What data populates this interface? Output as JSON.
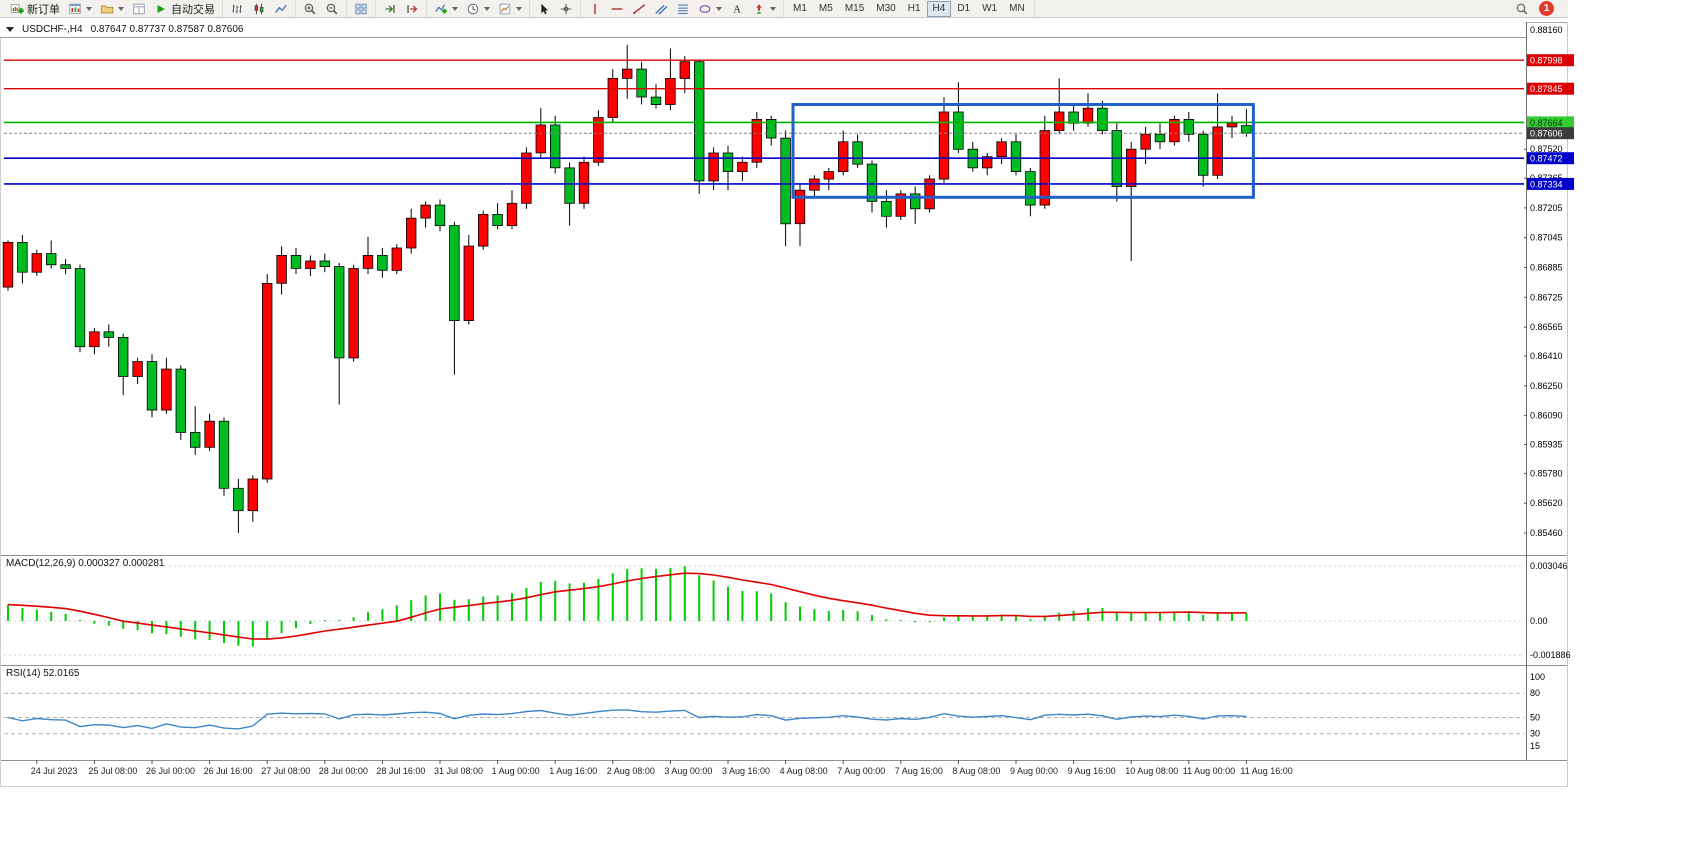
{
  "toolbar": {
    "new_order_label": "新订单",
    "auto_trading_label": "自动交易",
    "timeframes": [
      "M1",
      "M5",
      "M15",
      "M30",
      "H1",
      "H4",
      "D1",
      "W1",
      "MN"
    ],
    "active_timeframe": "H4",
    "notification_count": "1",
    "groups": [
      [
        {
          "name": "new-order",
          "icon": "new-order-icon",
          "label": "新订单"
        },
        {
          "name": "new-chart",
          "icon": "chart-window-icon",
          "dropdown": true
        },
        {
          "name": "profiles",
          "icon": "profiles-icon",
          "dropdown": true
        },
        {
          "name": "data-window",
          "icon": "data-window-icon"
        },
        {
          "name": "auto-trading",
          "icon": "autotrade-icon",
          "label": "自动交易"
        }
      ],
      [
        {
          "name": "bar-chart",
          "icon": "bars-icon"
        },
        {
          "name": "candlestick-chart",
          "icon": "candles-icon"
        },
        {
          "name": "line-chart",
          "icon": "linechart-icon"
        }
      ],
      [
        {
          "name": "zoom-in",
          "icon": "zoom-in-icon"
        },
        {
          "name": "zoom-out",
          "icon": "zoom-out-icon"
        }
      ],
      [
        {
          "name": "tile-windows",
          "icon": "tile-windows-icon"
        }
      ],
      [
        {
          "name": "auto-scroll",
          "icon": "auto-scroll-icon"
        },
        {
          "name": "chart-shift",
          "icon": "chart-shift-icon"
        }
      ],
      [
        {
          "name": "indicators",
          "icon": "indicators-icon",
          "dropdown": true
        },
        {
          "name": "periods",
          "icon": "periods-icon",
          "dropdown": true
        },
        {
          "name": "templates",
          "icon": "templates-icon",
          "dropdown": true
        }
      ],
      [
        {
          "name": "cursor",
          "icon": "cursor-icon"
        },
        {
          "name": "crosshair",
          "icon": "crosshair-icon"
        }
      ],
      [
        {
          "name": "vertical-line",
          "icon": "vline-icon"
        },
        {
          "name": "horizontal-line",
          "icon": "hline-icon"
        },
        {
          "name": "trendline",
          "icon": "trendline-icon"
        },
        {
          "name": "equidistant-channel",
          "icon": "channel-icon"
        },
        {
          "name": "fibonacci",
          "icon": "fibonacci-icon"
        },
        {
          "name": "shapes",
          "icon": "shapes-icon",
          "dropdown": true
        },
        {
          "name": "text",
          "icon": "text-icon"
        },
        {
          "name": "arrows",
          "icon": "arrows-icon",
          "dropdown": true
        }
      ]
    ]
  },
  "chart": {
    "header": {
      "symbol": "USDCHF-,H4",
      "ohlc_text": "0.87647 0.87737 0.87587 0.87606"
    }
  },
  "chart_data": {
    "type": "candlestick",
    "symbol": "USDCHF-",
    "timeframe": "H4",
    "bull_color": "#ff0000",
    "bear_color": "#00bb22",
    "y_range": [
      0.85353,
      0.88203
    ],
    "candles": [
      [
        0.8678,
        0.8703,
        0.8676,
        0.8702
      ],
      [
        0.8702,
        0.8706,
        0.868,
        0.8686
      ],
      [
        0.8686,
        0.8698,
        0.8684,
        0.8696
      ],
      [
        0.8696,
        0.8703,
        0.8688,
        0.869
      ],
      [
        0.869,
        0.8693,
        0.8685,
        0.8688
      ],
      [
        0.8688,
        0.869,
        0.8643,
        0.8646
      ],
      [
        0.8646,
        0.8656,
        0.8642,
        0.8654
      ],
      [
        0.8654,
        0.8658,
        0.8646,
        0.8651
      ],
      [
        0.8651,
        0.8653,
        0.862,
        0.863
      ],
      [
        0.863,
        0.864,
        0.8626,
        0.8638
      ],
      [
        0.8638,
        0.8642,
        0.8608,
        0.8612
      ],
      [
        0.8612,
        0.864,
        0.861,
        0.8634
      ],
      [
        0.8634,
        0.8636,
        0.8596,
        0.86
      ],
      [
        0.86,
        0.8614,
        0.8588,
        0.8592
      ],
      [
        0.8592,
        0.861,
        0.859,
        0.8606
      ],
      [
        0.8606,
        0.8608,
        0.8566,
        0.857
      ],
      [
        0.857,
        0.8575,
        0.8546,
        0.8558
      ],
      [
        0.8558,
        0.8577,
        0.8552,
        0.8575
      ],
      [
        0.8575,
        0.8685,
        0.8573,
        0.868
      ],
      [
        0.868,
        0.87,
        0.8674,
        0.8695
      ],
      [
        0.8695,
        0.8699,
        0.8685,
        0.8688
      ],
      [
        0.8688,
        0.8695,
        0.8684,
        0.8692
      ],
      [
        0.8692,
        0.8696,
        0.8686,
        0.8689
      ],
      [
        0.8689,
        0.8691,
        0.8615,
        0.864
      ],
      [
        0.864,
        0.869,
        0.8638,
        0.8688
      ],
      [
        0.8688,
        0.8705,
        0.8685,
        0.8695
      ],
      [
        0.8695,
        0.8699,
        0.8683,
        0.8687
      ],
      [
        0.8687,
        0.8701,
        0.8685,
        0.8699
      ],
      [
        0.8699,
        0.872,
        0.8696,
        0.8715
      ],
      [
        0.8715,
        0.8724,
        0.871,
        0.8722
      ],
      [
        0.8722,
        0.8725,
        0.8708,
        0.8711
      ],
      [
        0.8711,
        0.8713,
        0.8631,
        0.866
      ],
      [
        0.866,
        0.8706,
        0.8658,
        0.87
      ],
      [
        0.87,
        0.8719,
        0.8698,
        0.8717
      ],
      [
        0.8717,
        0.8723,
        0.8709,
        0.8711
      ],
      [
        0.8711,
        0.873,
        0.8709,
        0.8723
      ],
      [
        0.8723,
        0.8753,
        0.872,
        0.875
      ],
      [
        0.875,
        0.8774,
        0.8747,
        0.8765
      ],
      [
        0.8765,
        0.877,
        0.8739,
        0.8742
      ],
      [
        0.8742,
        0.8745,
        0.8711,
        0.8723
      ],
      [
        0.8723,
        0.8748,
        0.872,
        0.8745
      ],
      [
        0.8745,
        0.8773,
        0.8743,
        0.8769
      ],
      [
        0.8769,
        0.8795,
        0.8766,
        0.879
      ],
      [
        0.879,
        0.8808,
        0.8779,
        0.8795
      ],
      [
        0.8795,
        0.8799,
        0.8776,
        0.878
      ],
      [
        0.878,
        0.8787,
        0.8774,
        0.8776
      ],
      [
        0.8776,
        0.8806,
        0.8773,
        0.879
      ],
      [
        0.879,
        0.8802,
        0.8782,
        0.8799
      ],
      [
        0.8799,
        0.88,
        0.8728,
        0.8735
      ],
      [
        0.8735,
        0.8753,
        0.873,
        0.875
      ],
      [
        0.875,
        0.8754,
        0.873,
        0.874
      ],
      [
        0.874,
        0.8748,
        0.8735,
        0.8745
      ],
      [
        0.8745,
        0.8772,
        0.8742,
        0.8768
      ],
      [
        0.8768,
        0.877,
        0.8754,
        0.8758
      ],
      [
        0.8758,
        0.8762,
        0.87,
        0.8712
      ],
      [
        0.8712,
        0.8733,
        0.87,
        0.873
      ],
      [
        0.873,
        0.8738,
        0.8726,
        0.8736
      ],
      [
        0.8736,
        0.8742,
        0.873,
        0.874
      ],
      [
        0.874,
        0.8762,
        0.8738,
        0.8756
      ],
      [
        0.8756,
        0.876,
        0.8742,
        0.8744
      ],
      [
        0.8744,
        0.8746,
        0.8718,
        0.8724
      ],
      [
        0.8724,
        0.873,
        0.871,
        0.8716
      ],
      [
        0.8716,
        0.873,
        0.8714,
        0.8728
      ],
      [
        0.8728,
        0.8732,
        0.8712,
        0.872
      ],
      [
        0.872,
        0.8738,
        0.8718,
        0.8736
      ],
      [
        0.8736,
        0.878,
        0.8734,
        0.8772
      ],
      [
        0.8772,
        0.8788,
        0.875,
        0.8752
      ],
      [
        0.8752,
        0.8756,
        0.874,
        0.8742
      ],
      [
        0.8742,
        0.875,
        0.8738,
        0.8748
      ],
      [
        0.8748,
        0.8758,
        0.8744,
        0.8756
      ],
      [
        0.8756,
        0.876,
        0.8738,
        0.874
      ],
      [
        0.874,
        0.8742,
        0.8716,
        0.8722
      ],
      [
        0.8722,
        0.877,
        0.872,
        0.8762
      ],
      [
        0.8762,
        0.879,
        0.876,
        0.8772
      ],
      [
        0.8772,
        0.8776,
        0.8762,
        0.8766
      ],
      [
        0.8766,
        0.8782,
        0.8764,
        0.8774
      ],
      [
        0.8774,
        0.8778,
        0.876,
        0.8762
      ],
      [
        0.8762,
        0.8766,
        0.8724,
        0.8732
      ],
      [
        0.8732,
        0.8756,
        0.8692,
        0.8752
      ],
      [
        0.8752,
        0.8764,
        0.8744,
        0.876
      ],
      [
        0.876,
        0.8766,
        0.8752,
        0.8756
      ],
      [
        0.8756,
        0.877,
        0.8754,
        0.8768
      ],
      [
        0.8768,
        0.8772,
        0.8756,
        0.876
      ],
      [
        0.876,
        0.8762,
        0.8732,
        0.8738
      ],
      [
        0.8738,
        0.8782,
        0.8736,
        0.8764
      ],
      [
        0.8764,
        0.877,
        0.8758,
        0.8766
      ],
      [
        0.87647,
        0.87737,
        0.87587,
        0.87606
      ]
    ],
    "hlines": [
      {
        "price": 0.87998,
        "color": "#dd0000",
        "width": 1.3
      },
      {
        "price": 0.87845,
        "color": "#dd0000",
        "width": 1.3
      },
      {
        "price": 0.87664,
        "color": "#00b400",
        "width": 1.6
      },
      {
        "price": 0.87472,
        "color": "#0000cd",
        "width": 1.6
      },
      {
        "price": 0.87334,
        "color": "#0000cd",
        "width": 1.6
      }
    ],
    "current_price": 0.87606,
    "rectangle": {
      "start_index": 55,
      "end_index": 86,
      "top": 0.8776,
      "bottom": 0.87262,
      "color": "#2060c8"
    },
    "price_axis_ticks": [
      "0.88160",
      "0.87520",
      "0.87365",
      "0.87205",
      "0.87045",
      "0.86885",
      "0.86725",
      "0.86565",
      "0.86410",
      "0.86250",
      "0.86090",
      "0.85935",
      "0.85780",
      "0.85620",
      "0.85460"
    ],
    "price_badges": [
      {
        "price": 0.87998,
        "label": "0.87998",
        "bg": "#dd0000",
        "fg": "#ffffff"
      },
      {
        "price": 0.87845,
        "label": "0.87845",
        "bg": "#dd0000",
        "fg": "#ffffff"
      },
      {
        "price": 0.87664,
        "label": "0.87664",
        "bg": "#33cc33",
        "fg": "#003300"
      },
      {
        "price": 0.87606,
        "label": "0.87606",
        "bg": "#3c3c3c",
        "fg": "#ffffff"
      },
      {
        "price": 0.87472,
        "label": "0.87472",
        "bg": "#0000cd",
        "fg": "#ffffff"
      },
      {
        "price": 0.87334,
        "label": "0.87334",
        "bg": "#0000cd",
        "fg": "#ffffff"
      }
    ],
    "time_labels": [
      "24 Jul 2023",
      "25 Jul 08:00",
      "26 Jul 00:00",
      "26 Jul 16:00",
      "27 Jul 08:00",
      "28 Jul 00:00",
      "28 Jul 16:00",
      "31 Jul 08:00",
      "1 Aug 00:00",
      "1 Aug 16:00",
      "2 Aug 08:00",
      "3 Aug 00:00",
      "3 Aug 16:00",
      "4 Aug 08:00",
      "7 Aug 00:00",
      "7 Aug 16:00",
      "8 Aug 08:00",
      "9 Aug 00:00",
      "9 Aug 16:00",
      "10 Aug 08:00",
      "11 Aug 00:00",
      "11 Aug 16:00"
    ],
    "macd": {
      "label": "MACD(12,26,9)",
      "values_text": "0.000327 0.000281",
      "params": [
        12,
        26,
        9
      ],
      "axis_ticks": [
        "0.003046",
        "0.00",
        "-0.001886"
      ],
      "histogram_color": "#00cc00",
      "signal_color": "#e00000"
    },
    "rsi": {
      "label": "RSI(14)",
      "value_text": "52.0165",
      "period": 14,
      "axis_ticks": [
        "100",
        "80",
        "50",
        "30",
        "15"
      ],
      "levels": [
        80,
        50,
        30
      ],
      "line_color": "#3e86c8"
    }
  }
}
